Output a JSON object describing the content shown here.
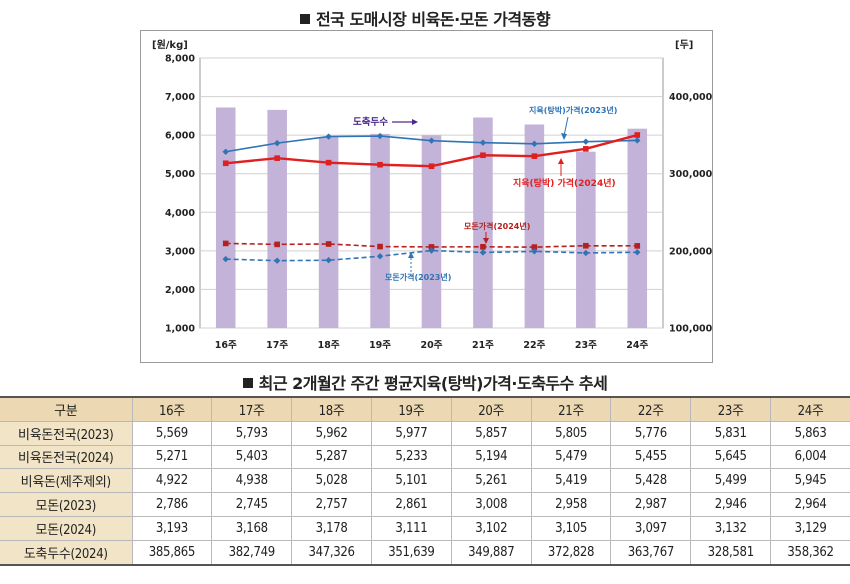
{
  "chart_title": "전국 도매시장 비육돈·모돈 가격동향",
  "table_title": "최근 2개월간 주간 평균지육(탕박)가격·도축두수 추세",
  "chart_data": {
    "type": "bar+line",
    "title": "전국 도매시장 비육돈·모돈 가격동향",
    "categories": [
      "16주",
      "17주",
      "18주",
      "19주",
      "20주",
      "21주",
      "22주",
      "23주",
      "24주"
    ],
    "y_left_label": "[원/kg]",
    "y_left_range": [
      1000,
      8000
    ],
    "y_left_ticks": [
      "1,000",
      "2,000",
      "3,000",
      "4,000",
      "5,000",
      "6,000",
      "7,000",
      "8,000"
    ],
    "y_right_label": "[두]",
    "y_right_range": [
      100000,
      450000
    ],
    "y_right_ticks": [
      "100,000",
      "200,000",
      "300,000",
      "400,000"
    ],
    "grid": "horizontal",
    "bars": {
      "name": "도축두수",
      "axis": "right",
      "color": "#c3b3d8",
      "values": [
        385865,
        382749,
        347326,
        351639,
        349887,
        372828,
        363767,
        328581,
        358362
      ]
    },
    "series": [
      {
        "name": "지육(탕박)가격(2023년)",
        "color": "#2f74b5",
        "dash": false,
        "marker": "diamond",
        "values": [
          5569,
          5793,
          5962,
          5977,
          5857,
          5805,
          5776,
          5831,
          5863
        ]
      },
      {
        "name": "지육(탕박) 가격(2024년)",
        "color": "#e02020",
        "dash": false,
        "marker": "square",
        "values": [
          5271,
          5403,
          5287,
          5233,
          5194,
          5479,
          5455,
          5645,
          6004
        ]
      },
      {
        "name": "모돈가격(2024년)",
        "color": "#b52020",
        "dash": true,
        "marker": "square",
        "values": [
          3193,
          3168,
          3178,
          3111,
          3102,
          3105,
          3097,
          3132,
          3129
        ]
      },
      {
        "name": "모돈가격(2023년)",
        "color": "#2f74b5",
        "dash": true,
        "marker": "diamond",
        "values": [
          2786,
          2745,
          2757,
          2861,
          3008,
          2958,
          2987,
          2946,
          2964
        ]
      }
    ],
    "annotations": [
      {
        "text": "도축두수",
        "color": "#4b2a8c"
      },
      {
        "text": "지육(탕박)가격(2023년)",
        "color": "#2f74b5"
      },
      {
        "text": "지육(탕박) 가격(2024년)",
        "color": "#e02020"
      },
      {
        "text": "모돈가격(2024년)",
        "color": "#b52020"
      },
      {
        "text": "모돈가격(2023년)",
        "color": "#2f74b5"
      }
    ]
  },
  "table": {
    "headers": [
      "구분",
      "16주",
      "17주",
      "18주",
      "19주",
      "20주",
      "21주",
      "22주",
      "23주",
      "24주"
    ],
    "rows": [
      [
        "비육돈전국(2023)",
        "5,569",
        "5,793",
        "5,962",
        "5,977",
        "5,857",
        "5,805",
        "5,776",
        "5,831",
        "5,863"
      ],
      [
        "비육돈전국(2024)",
        "5,271",
        "5,403",
        "5,287",
        "5,233",
        "5,194",
        "5,479",
        "5,455",
        "5,645",
        "6,004"
      ],
      [
        "비육돈(제주제외)",
        "4,922",
        "4,938",
        "5,028",
        "5,101",
        "5,261",
        "5,419",
        "5,428",
        "5,499",
        "5,945"
      ],
      [
        "모돈(2023)",
        "2,786",
        "2,745",
        "2,757",
        "2,861",
        "3,008",
        "2,958",
        "2,987",
        "2,946",
        "2,964"
      ],
      [
        "모돈(2024)",
        "3,193",
        "3,168",
        "3,178",
        "3,111",
        "3,102",
        "3,105",
        "3,097",
        "3,132",
        "3,129"
      ],
      [
        "도축두수(2024)",
        "385,865",
        "382,749",
        "347,326",
        "351,639",
        "349,887",
        "372,828",
        "363,767",
        "328,581",
        "358,362"
      ]
    ]
  }
}
